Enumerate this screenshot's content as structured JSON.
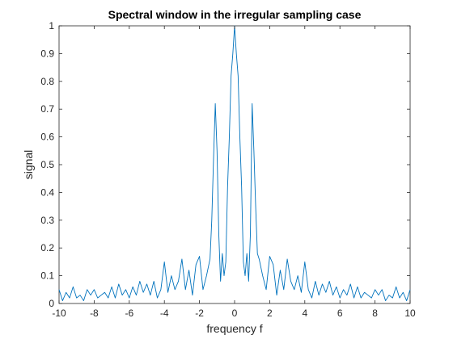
{
  "chart_data": {
    "type": "line",
    "title": "Spectral window in the irregular sampling case",
    "xlabel": "frequency f",
    "ylabel": "signal",
    "xlim": [
      -10,
      10
    ],
    "ylim": [
      0,
      1
    ],
    "x_ticks": [
      -10,
      -8,
      -6,
      -4,
      -2,
      0,
      2,
      4,
      6,
      8,
      10
    ],
    "y_ticks": [
      0,
      0.1,
      0.2,
      0.3,
      0.4,
      0.5,
      0.6,
      0.7,
      0.8,
      0.9,
      1
    ],
    "x_tick_labels": [
      "-10",
      "-8",
      "-6",
      "-4",
      "-2",
      "0",
      "2",
      "4",
      "6",
      "8",
      "10"
    ],
    "y_tick_labels": [
      "0",
      "0.1",
      "0.2",
      "0.3",
      "0.4",
      "0.5",
      "0.6",
      "0.7",
      "0.8",
      "0.9",
      "1"
    ],
    "grid": false,
    "line_color": "#0072BD",
    "series": [
      {
        "x": [
          -10.0,
          -9.8,
          -9.6,
          -9.4,
          -9.2,
          -9.0,
          -8.8,
          -8.6,
          -8.4,
          -8.2,
          -8.0,
          -7.8,
          -7.6,
          -7.4,
          -7.2,
          -7.0,
          -6.8,
          -6.6,
          -6.4,
          -6.2,
          -6.0,
          -5.8,
          -5.6,
          -5.4,
          -5.2,
          -5.0,
          -4.8,
          -4.6,
          -4.4,
          -4.2,
          -4.0,
          -3.8,
          -3.6,
          -3.4,
          -3.2,
          -3.0,
          -2.8,
          -2.6,
          -2.4,
          -2.2,
          -2.0,
          -1.8,
          -1.6,
          -1.4,
          -1.3,
          -1.2,
          -1.1,
          -1.0,
          -0.9,
          -0.8,
          -0.7,
          -0.6,
          -0.5,
          -0.4,
          -0.3,
          -0.2,
          -0.1,
          0.0,
          0.1,
          0.2,
          0.3,
          0.4,
          0.5,
          0.6,
          0.7,
          0.8,
          0.9,
          1.0,
          1.1,
          1.2,
          1.3,
          1.4,
          1.6,
          1.8,
          2.0,
          2.2,
          2.4,
          2.6,
          2.8,
          3.0,
          3.2,
          3.4,
          3.6,
          3.8,
          4.0,
          4.2,
          4.4,
          4.6,
          4.8,
          5.0,
          5.2,
          5.4,
          5.6,
          5.8,
          6.0,
          6.2,
          6.4,
          6.6,
          6.8,
          7.0,
          7.2,
          7.4,
          7.6,
          7.8,
          8.0,
          8.2,
          8.4,
          8.6,
          8.8,
          9.0,
          9.2,
          9.4,
          9.6,
          9.8,
          10.0
        ],
        "y": [
          0.05,
          0.01,
          0.04,
          0.02,
          0.06,
          0.02,
          0.03,
          0.01,
          0.05,
          0.03,
          0.05,
          0.02,
          0.03,
          0.04,
          0.02,
          0.06,
          0.02,
          0.07,
          0.03,
          0.05,
          0.02,
          0.06,
          0.03,
          0.08,
          0.04,
          0.07,
          0.03,
          0.08,
          0.02,
          0.05,
          0.15,
          0.04,
          0.1,
          0.05,
          0.08,
          0.16,
          0.05,
          0.12,
          0.03,
          0.14,
          0.17,
          0.05,
          0.1,
          0.16,
          0.3,
          0.52,
          0.72,
          0.55,
          0.25,
          0.08,
          0.18,
          0.1,
          0.15,
          0.42,
          0.6,
          0.82,
          0.9,
          1.0,
          0.9,
          0.82,
          0.6,
          0.42,
          0.15,
          0.1,
          0.18,
          0.08,
          0.25,
          0.72,
          0.55,
          0.35,
          0.18,
          0.16,
          0.1,
          0.05,
          0.17,
          0.14,
          0.03,
          0.12,
          0.05,
          0.16,
          0.08,
          0.05,
          0.1,
          0.04,
          0.15,
          0.05,
          0.02,
          0.08,
          0.03,
          0.07,
          0.04,
          0.08,
          0.03,
          0.06,
          0.02,
          0.05,
          0.03,
          0.07,
          0.02,
          0.06,
          0.02,
          0.04,
          0.03,
          0.02,
          0.05,
          0.03,
          0.05,
          0.01,
          0.03,
          0.02,
          0.06,
          0.02,
          0.04,
          0.01,
          0.05
        ]
      }
    ]
  }
}
